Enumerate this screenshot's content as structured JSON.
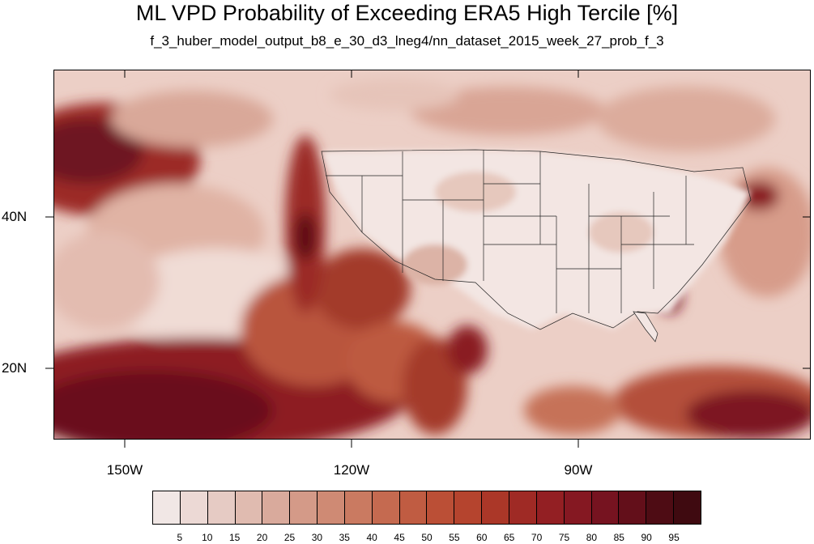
{
  "title": "ML VPD Probability of Exceeding ERA5 High Tercile [%]",
  "subtitle": "f_3_huber_model_output_b8_e_30_d3_lneg4/nn_dataset_2015_week_27_prob_f_3",
  "lat_labels": [
    "40N",
    "20N"
  ],
  "lon_labels": [
    "150W",
    "120W",
    "90W"
  ],
  "colorbar": {
    "labels": [
      "5",
      "10",
      "15",
      "20",
      "25",
      "30",
      "35",
      "40",
      "45",
      "50",
      "55",
      "60",
      "65",
      "70",
      "75",
      "80",
      "85",
      "90",
      "95"
    ],
    "colors": [
      "#f1e7e5",
      "#ecd9d5",
      "#e6cbc4",
      "#e0bbb0",
      "#d9aa9c",
      "#d49a88",
      "#cf8a74",
      "#ca7a61",
      "#c56a50",
      "#c05c42",
      "#bb4f36",
      "#b5442e",
      "#ab3728",
      "#9f2a25",
      "#931f23",
      "#851822",
      "#761320",
      "#630f1a",
      "#4e0c14"
    ]
  },
  "map_colors": {
    "ocean_dark": "#7a1620",
    "ocean_mid": "#b14a35",
    "ocean_light": "#e8c9bd",
    "land_light": "#f2e6e3"
  }
}
